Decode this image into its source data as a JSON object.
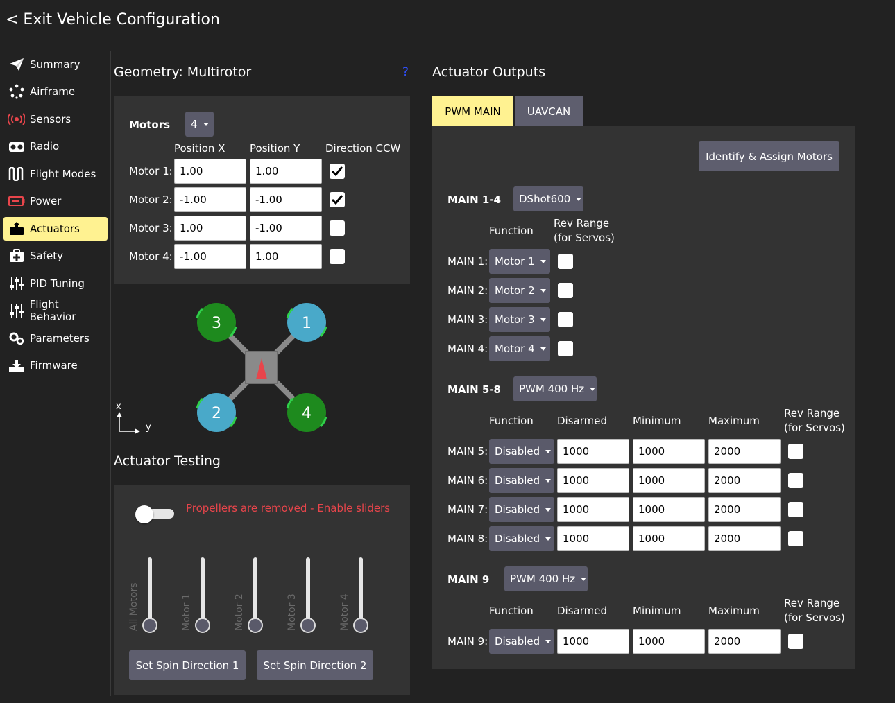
{
  "header": {
    "back_label": "< Exit Vehicle Configuration"
  },
  "sidebar": {
    "items": [
      {
        "label": "Summary",
        "icon": "paper-plane-icon"
      },
      {
        "label": "Airframe",
        "icon": "airframe-icon"
      },
      {
        "label": "Sensors",
        "icon": "sensors-icon"
      },
      {
        "label": "Radio",
        "icon": "radio-icon"
      },
      {
        "label": "Flight Modes",
        "icon": "flight-modes-icon"
      },
      {
        "label": "Power",
        "icon": "power-icon"
      },
      {
        "label": "Actuators",
        "icon": "actuators-icon"
      },
      {
        "label": "Safety",
        "icon": "safety-icon"
      },
      {
        "label": "PID Tuning",
        "icon": "pid-tuning-icon"
      },
      {
        "label": "Flight Behavior",
        "icon": "flight-behavior-icon"
      },
      {
        "label": "Parameters",
        "icon": "parameters-icon"
      },
      {
        "label": "Firmware",
        "icon": "firmware-icon"
      }
    ],
    "active": "Actuators",
    "active_color": "#fff291"
  },
  "geometry": {
    "title": "Geometry: Multirotor",
    "help": "?",
    "motors_label": "Motors",
    "motors_count": "4",
    "col_x": "Position X",
    "col_y": "Position Y",
    "col_dir": "Direction CCW",
    "motors": [
      {
        "label": "Motor 1:",
        "x": "1.00",
        "y": "1.00",
        "ccw": true
      },
      {
        "label": "Motor 2:",
        "x": "-1.00",
        "y": "-1.00",
        "ccw": true
      },
      {
        "label": "Motor 3:",
        "x": "1.00",
        "y": "-1.00",
        "ccw": false
      },
      {
        "label": "Motor 4:",
        "x": "-1.00",
        "y": "1.00",
        "ccw": false
      }
    ],
    "diagram": {
      "props": [
        {
          "num": "3",
          "color": "#1e8a1e"
        },
        {
          "num": "1",
          "color": "#49a9c9"
        },
        {
          "num": "2",
          "color": "#49a9c9"
        },
        {
          "num": "4",
          "color": "#1e8a1e"
        }
      ],
      "axis_x": "x",
      "axis_y": "y"
    }
  },
  "testing": {
    "title": "Actuator Testing",
    "warning": "Propellers are removed - Enable sliders",
    "warning_color": "#e8454b",
    "enabled": false,
    "sliders": [
      "All Motors",
      "Motor 1",
      "Motor 2",
      "Motor 3",
      "Motor 4"
    ],
    "btn_spin1": "Set Spin Direction 1",
    "btn_spin2": "Set Spin Direction 2"
  },
  "outputs": {
    "title": "Actuator Outputs",
    "tabs": [
      "PWM MAIN",
      "UAVCAN"
    ],
    "active_tab": "PWM MAIN",
    "identify_btn": "Identify & Assign Motors",
    "group1": {
      "label": "MAIN 1-4",
      "protocol": "DShot600",
      "col_function": "Function",
      "col_rev1": "Rev Range",
      "col_rev2": "(for Servos)",
      "rows": [
        {
          "label": "MAIN 1:",
          "function": "Motor 1"
        },
        {
          "label": "MAIN 2:",
          "function": "Motor 2"
        },
        {
          "label": "MAIN 3:",
          "function": "Motor 3"
        },
        {
          "label": "MAIN 4:",
          "function": "Motor 4"
        }
      ]
    },
    "group2": {
      "label": "MAIN 5-8",
      "protocol": "PWM 400 Hz",
      "col_function": "Function",
      "col_disarmed": "Disarmed",
      "col_min": "Minimum",
      "col_max": "Maximum",
      "col_rev1": "Rev Range",
      "col_rev2": "(for Servos)",
      "rows": [
        {
          "label": "MAIN 5:",
          "function": "Disabled",
          "disarmed": "1000",
          "min": "1000",
          "max": "2000"
        },
        {
          "label": "MAIN 6:",
          "function": "Disabled",
          "disarmed": "1000",
          "min": "1000",
          "max": "2000"
        },
        {
          "label": "MAIN 7:",
          "function": "Disabled",
          "disarmed": "1000",
          "min": "1000",
          "max": "2000"
        },
        {
          "label": "MAIN 8:",
          "function": "Disabled",
          "disarmed": "1000",
          "min": "1000",
          "max": "2000"
        }
      ]
    },
    "group3": {
      "label": "MAIN 9",
      "protocol": "PWM 400 Hz",
      "col_function": "Function",
      "col_disarmed": "Disarmed",
      "col_min": "Minimum",
      "col_max": "Maximum",
      "col_rev1": "Rev Range",
      "col_rev2": "(for Servos)",
      "rows": [
        {
          "label": "MAIN 9:",
          "function": "Disabled",
          "disarmed": "1000",
          "min": "1000",
          "max": "2000"
        }
      ]
    }
  }
}
